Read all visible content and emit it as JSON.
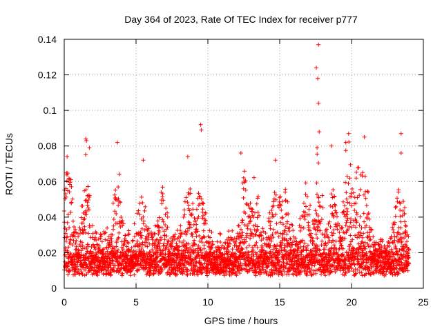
{
  "chart_data": {
    "type": "scatter",
    "title": "Day 364 of 2023, Rate Of TEC Index for receiver p777",
    "xlabel": "GPS time / hours",
    "ylabel": "ROTI / TECUs",
    "xlim": [
      0,
      25
    ],
    "ylim": [
      0,
      0.14
    ],
    "xticks": [
      "0",
      "5",
      "10",
      "15",
      "20",
      "25"
    ],
    "yticks": [
      "0",
      "0.02",
      "0.04",
      "0.06",
      "0.08",
      "0.1",
      "0.12",
      "0.14"
    ],
    "grid": true,
    "marker": "+",
    "color": "#ff0000",
    "series": [
      {
        "name": "ROTI",
        "x_range": [
          0,
          24
        ],
        "baseline_mean": 0.017,
        "notable_points": [
          {
            "x": 17.7,
            "y": 0.137
          },
          {
            "x": 17.55,
            "y": 0.124
          },
          {
            "x": 17.65,
            "y": 0.118
          },
          {
            "x": 17.7,
            "y": 0.104
          },
          {
            "x": 9.5,
            "y": 0.092
          },
          {
            "x": 9.55,
            "y": 0.089
          },
          {
            "x": 17.75,
            "y": 0.088
          },
          {
            "x": 19.8,
            "y": 0.087
          },
          {
            "x": 23.45,
            "y": 0.087
          },
          {
            "x": 1.5,
            "y": 0.084
          },
          {
            "x": 1.55,
            "y": 0.083
          },
          {
            "x": 20.9,
            "y": 0.085
          },
          {
            "x": 3.7,
            "y": 0.082
          },
          {
            "x": 19.6,
            "y": 0.082
          },
          {
            "x": 18.6,
            "y": 0.08
          },
          {
            "x": 17.6,
            "y": 0.079
          },
          {
            "x": 1.75,
            "y": 0.079
          },
          {
            "x": 12.3,
            "y": 0.076
          },
          {
            "x": 23.45,
            "y": 0.076
          },
          {
            "x": 0.2,
            "y": 0.074
          },
          {
            "x": 8.6,
            "y": 0.074
          },
          {
            "x": 5.5,
            "y": 0.072
          },
          {
            "x": 14.7,
            "y": 0.072
          }
        ]
      }
    ]
  }
}
